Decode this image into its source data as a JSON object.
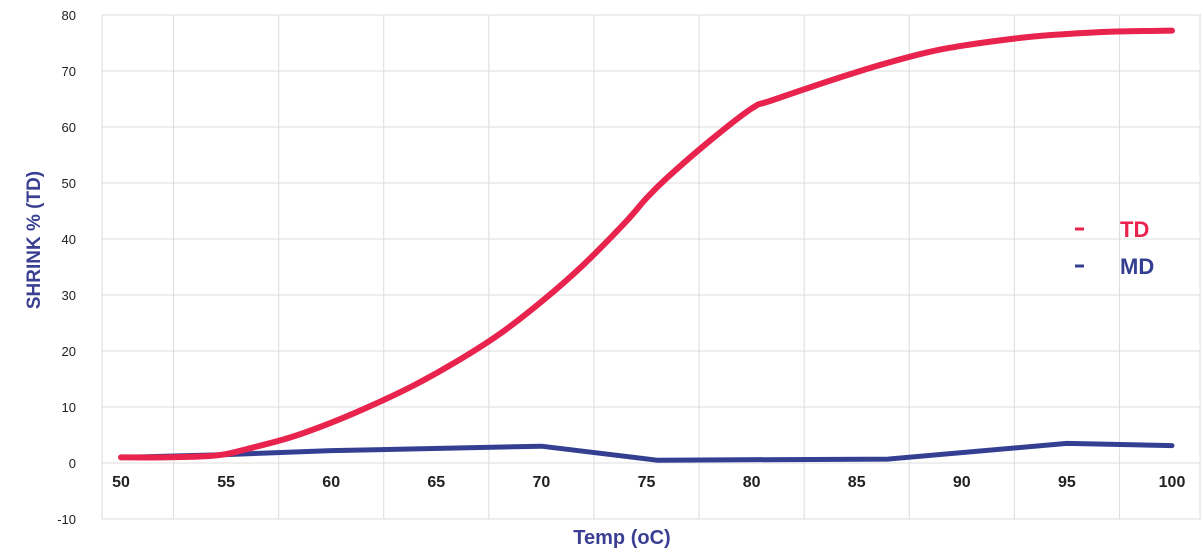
{
  "chart_data": {
    "type": "line",
    "xlabel": "Temp (oC)",
    "ylabel": "SHRINK % (TD)",
    "xlim": [
      50,
      100
    ],
    "ylim": [
      -10,
      80
    ],
    "x_ticks": [
      50,
      55,
      60,
      65,
      70,
      75,
      80,
      85,
      90,
      95,
      100
    ],
    "y_ticks": [
      -10,
      0,
      10,
      20,
      30,
      40,
      50,
      60,
      70,
      80
    ],
    "grid": true,
    "legend_position": "right",
    "colors": {
      "label": "#3a3f92",
      "grid": "#dcdcdc"
    },
    "series": [
      {
        "name": "TD",
        "color": "#e8234d",
        "points": [
          [
            50,
            1
          ],
          [
            52,
            1
          ],
          [
            54,
            1.2
          ],
          [
            55,
            1.6
          ],
          [
            56,
            2.5
          ],
          [
            58,
            4.5
          ],
          [
            60,
            7.2
          ],
          [
            62,
            10.4
          ],
          [
            64,
            14
          ],
          [
            66,
            18.2
          ],
          [
            68,
            23
          ],
          [
            70,
            28.8
          ],
          [
            72,
            35.4
          ],
          [
            74,
            43
          ],
          [
            75,
            47.3
          ],
          [
            76,
            51
          ],
          [
            78,
            57.5
          ],
          [
            80,
            63.3
          ],
          [
            81,
            64.8
          ],
          [
            85,
            69.8
          ],
          [
            88,
            73
          ],
          [
            90,
            74.5
          ],
          [
            93,
            76
          ],
          [
            95,
            76.6
          ],
          [
            97,
            77
          ],
          [
            98,
            77.1
          ],
          [
            100,
            77.2
          ]
        ]
      },
      {
        "name": "MD",
        "color": "#343f92",
        "points": [
          [
            50,
            1
          ],
          [
            55,
            1.5
          ],
          [
            60,
            2.2
          ],
          [
            70,
            3
          ],
          [
            75.5,
            0.5
          ],
          [
            86.5,
            0.7
          ],
          [
            95,
            3.5
          ],
          [
            100,
            3.1
          ]
        ]
      }
    ]
  }
}
